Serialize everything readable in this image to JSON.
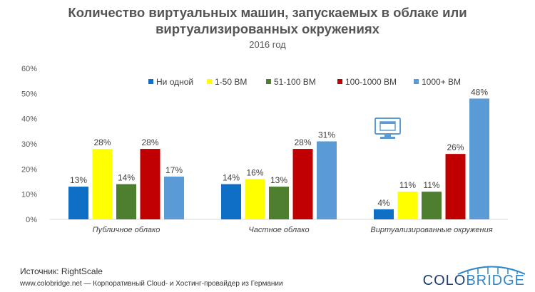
{
  "title_line1": "Количество виртуальных машин, запускаемых в облаке или",
  "title_line2": "виртуализированных окружениях",
  "subtitle": "2016 год",
  "source": "Источник:  RightScale",
  "footer": "www.colobridge.net — Корпоративный Cloud- и Хостинг-провайдер из Германии",
  "logo": {
    "part1": "COLO",
    "part2": "BRIDGE"
  },
  "icon": "monitor-icon",
  "chart_data": {
    "type": "bar",
    "categories": [
      "Публичное облако",
      "Частное облако",
      "Виртуализированные окружения"
    ],
    "series": [
      {
        "name": "Ни одной",
        "color": "#0f6fc6",
        "values": [
          13,
          14,
          4
        ]
      },
      {
        "name": "1-50 ВМ",
        "color": "#ffff00",
        "values": [
          28,
          16,
          11
        ]
      },
      {
        "name": "51-100 ВМ",
        "color": "#4e7f2f",
        "values": [
          14,
          13,
          11
        ]
      },
      {
        "name": "100-1000 ВМ",
        "color": "#c00000",
        "values": [
          28,
          28,
          26
        ]
      },
      {
        "name": "1000+ ВМ",
        "color": "#5b9bd5",
        "values": [
          17,
          31,
          48
        ]
      }
    ],
    "ylim": [
      0,
      60
    ],
    "yticks": [
      "0%",
      "10%",
      "20%",
      "30%",
      "40%",
      "50%",
      "60%"
    ],
    "value_suffix": "%",
    "legend_position": "top",
    "grid": false
  }
}
